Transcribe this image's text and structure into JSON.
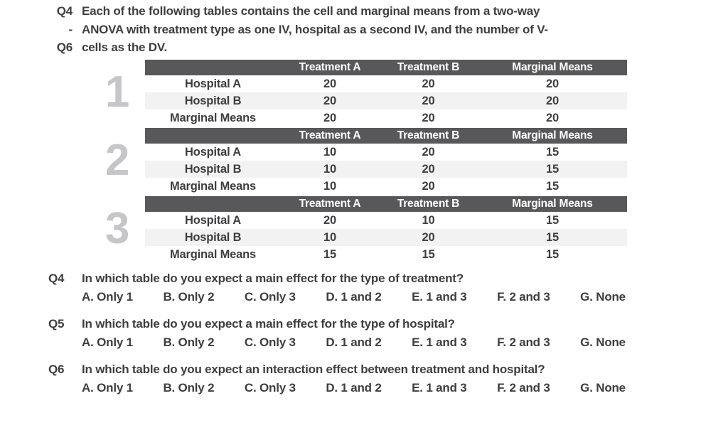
{
  "intro": {
    "rows": [
      {
        "label": "Q4",
        "text": "Each of the following tables contains the cell and marginal means from a two-way"
      },
      {
        "label": "-",
        "text": "ANOVA with treatment type as one IV, hospital as a second IV, and the number of V-"
      },
      {
        "label": "Q6",
        "text": "cells as the DV."
      }
    ]
  },
  "tables": [
    {
      "number": "1",
      "columns": [
        "",
        "Treatment A",
        "Treatment B",
        "Marginal Means"
      ],
      "rows": [
        {
          "label": "Hospital A",
          "values": [
            "20",
            "20",
            "20"
          ]
        },
        {
          "label": "Hospital B",
          "values": [
            "20",
            "20",
            "20"
          ]
        },
        {
          "label": "Marginal Means",
          "values": [
            "20",
            "20",
            "20"
          ]
        }
      ]
    },
    {
      "number": "2",
      "columns": [
        "",
        "Treatment A",
        "Treatment B",
        "Marginal Means"
      ],
      "rows": [
        {
          "label": "Hospital A",
          "values": [
            "10",
            "20",
            "15"
          ]
        },
        {
          "label": "Hospital B",
          "values": [
            "10",
            "20",
            "15"
          ]
        },
        {
          "label": "Marginal Means",
          "values": [
            "10",
            "20",
            "15"
          ]
        }
      ]
    },
    {
      "number": "3",
      "columns": [
        "",
        "Treatment A",
        "Treatment B",
        "Marginal Means"
      ],
      "rows": [
        {
          "label": "Hospital A",
          "values": [
            "20",
            "10",
            "15"
          ]
        },
        {
          "label": "Hospital B",
          "values": [
            "10",
            "20",
            "15"
          ]
        },
        {
          "label": "Marginal Means",
          "values": [
            "15",
            "15",
            "15"
          ]
        }
      ]
    }
  ],
  "questions": [
    {
      "label": "Q4",
      "text": "In which table do you expect a main effect for the type of treatment?",
      "options": [
        "A. Only 1",
        "B. Only 2",
        "C. Only 3",
        "D. 1 and 2",
        "E. 1 and 3",
        "F. 2 and 3",
        "G. None"
      ]
    },
    {
      "label": "Q5",
      "text": "In which table do you expect a main effect for the type of hospital?",
      "options": [
        "A. Only 1",
        "B. Only 2",
        "C. Only 3",
        "D. 1 and 2",
        "E. 1 and 3",
        "F. 2 and 3",
        "G. None"
      ]
    },
    {
      "label": "Q6",
      "text": "In which table do you expect an interaction effect between treatment and hospital?",
      "options": [
        "A. Only 1",
        "B. Only 2",
        "C. Only 3",
        "D. 1 and 2",
        "E. 1 and 3",
        "F. 2 and 3",
        "G. None"
      ]
    }
  ],
  "colors": {
    "table_header_bg": "#58585a",
    "table_header_text": "#ffffff",
    "alt_row_bg": "#f2f2f2",
    "body_text": "#3e3e41",
    "table_number": "#c6c6c9"
  }
}
